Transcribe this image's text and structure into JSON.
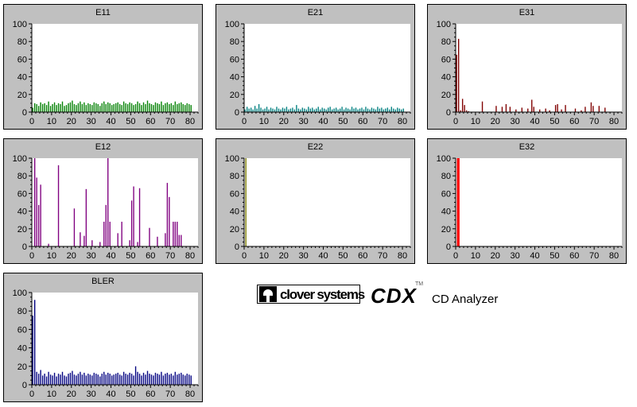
{
  "chart_data": [
    {
      "id": "e11",
      "type": "bar",
      "title": "E11",
      "color": "#008000",
      "xlim": [
        0,
        84
      ],
      "ylim": [
        0,
        100
      ],
      "xticks": [
        0,
        10,
        20,
        30,
        40,
        50,
        60,
        70,
        80
      ],
      "yticks": [
        0,
        20,
        40,
        60,
        80,
        100
      ],
      "x": [
        0,
        1,
        2,
        3,
        4,
        5,
        6,
        7,
        8,
        9,
        10,
        11,
        12,
        13,
        14,
        15,
        16,
        17,
        18,
        19,
        20,
        21,
        22,
        23,
        24,
        25,
        26,
        27,
        28,
        29,
        30,
        31,
        32,
        33,
        34,
        35,
        36,
        37,
        38,
        39,
        40,
        41,
        42,
        43,
        44,
        45,
        46,
        47,
        48,
        49,
        50,
        51,
        52,
        53,
        54,
        55,
        56,
        57,
        58,
        59,
        60,
        61,
        62,
        63,
        64,
        65,
        66,
        67,
        68,
        69,
        70,
        71,
        72,
        73,
        74,
        75,
        76,
        77,
        78,
        79,
        80
      ],
      "values": [
        5,
        10,
        9,
        7,
        11,
        9,
        10,
        8,
        12,
        7,
        9,
        11,
        8,
        10,
        9,
        12,
        7,
        8,
        10,
        11,
        13,
        9,
        8,
        10,
        12,
        9,
        11,
        8,
        10,
        9,
        8,
        11,
        10,
        9,
        7,
        10,
        12,
        9,
        11,
        10,
        8,
        9,
        10,
        11,
        9,
        8,
        12,
        10,
        9,
        11,
        10,
        8,
        9,
        12,
        10,
        8,
        11,
        9,
        13,
        10,
        9,
        8,
        11,
        10,
        9,
        12,
        8,
        10,
        11,
        9,
        10,
        8,
        12,
        9,
        10,
        11,
        9,
        8,
        10,
        9,
        8
      ]
    },
    {
      "id": "e21",
      "type": "bar",
      "title": "E21",
      "color": "#008080",
      "xlim": [
        0,
        84
      ],
      "ylim": [
        0,
        100
      ],
      "xticks": [
        0,
        10,
        20,
        30,
        40,
        50,
        60,
        70,
        80
      ],
      "yticks": [
        0,
        20,
        40,
        60,
        80,
        100
      ],
      "x": [
        0,
        1,
        2,
        3,
        4,
        5,
        6,
        7,
        8,
        9,
        10,
        11,
        12,
        13,
        14,
        15,
        16,
        17,
        18,
        19,
        20,
        21,
        22,
        23,
        24,
        25,
        26,
        27,
        28,
        29,
        30,
        31,
        32,
        33,
        34,
        35,
        36,
        37,
        38,
        39,
        40,
        41,
        42,
        43,
        44,
        45,
        46,
        47,
        48,
        49,
        50,
        51,
        52,
        53,
        54,
        55,
        56,
        57,
        58,
        59,
        60,
        61,
        62,
        63,
        64,
        65,
        66,
        67,
        68,
        69,
        70,
        71,
        72,
        73,
        74,
        75,
        76,
        77,
        78,
        79,
        80
      ],
      "values": [
        3,
        6,
        4,
        5,
        3,
        7,
        4,
        9,
        5,
        3,
        4,
        6,
        3,
        5,
        4,
        3,
        6,
        4,
        3,
        5,
        4,
        6,
        3,
        4,
        5,
        3,
        8,
        4,
        3,
        5,
        4,
        3,
        6,
        4,
        5,
        3,
        4,
        6,
        3,
        5,
        4,
        3,
        5,
        6,
        3,
        4,
        5,
        3,
        4,
        6,
        3,
        5,
        4,
        3,
        6,
        4,
        5,
        3,
        4,
        5,
        3,
        6,
        4,
        3,
        5,
        4,
        3,
        6,
        4,
        5,
        3,
        4,
        5,
        3,
        6,
        4,
        3,
        5,
        4,
        3,
        4
      ]
    },
    {
      "id": "e31",
      "type": "bar",
      "title": "E31",
      "color": "#800000",
      "xlim": [
        0,
        84
      ],
      "ylim": [
        0,
        100
      ],
      "xticks": [
        0,
        10,
        20,
        30,
        40,
        50,
        60,
        70,
        80
      ],
      "yticks": [
        0,
        20,
        40,
        60,
        80,
        100
      ],
      "x": [
        0,
        1,
        2,
        3,
        4,
        5,
        6,
        13,
        20,
        23,
        25,
        27,
        30,
        33,
        36,
        38,
        39,
        42,
        45,
        47,
        50,
        51,
        53,
        55,
        60,
        63,
        65,
        68,
        69,
        72,
        75
      ],
      "values": [
        65,
        83,
        2,
        15,
        8,
        2,
        1,
        12,
        7,
        6,
        9,
        6,
        3,
        5,
        4,
        14,
        6,
        3,
        4,
        2,
        8,
        9,
        3,
        8,
        4,
        2,
        6,
        11,
        7,
        7,
        5
      ]
    },
    {
      "id": "e12",
      "type": "bar",
      "title": "E12",
      "color": "#800080",
      "xlim": [
        0,
        84
      ],
      "ylim": [
        0,
        100
      ],
      "xticks": [
        0,
        10,
        20,
        30,
        40,
        50,
        60,
        70,
        80
      ],
      "yticks": [
        0,
        20,
        40,
        60,
        80,
        100
      ],
      "x": [
        1,
        2,
        3,
        4,
        8,
        13,
        21,
        24,
        26,
        27,
        30,
        34,
        36,
        37,
        38,
        39,
        43,
        45,
        49,
        50,
        51,
        53,
        54,
        59,
        63,
        67,
        68,
        69,
        71,
        72,
        73,
        74,
        75
      ],
      "values": [
        100,
        78,
        47,
        70,
        3,
        92,
        43,
        16,
        12,
        65,
        7,
        5,
        28,
        47,
        100,
        28,
        15,
        28,
        7,
        52,
        68,
        5,
        66,
        21,
        11,
        15,
        72,
        56,
        28,
        28,
        28,
        13,
        13
      ]
    },
    {
      "id": "e22",
      "type": "bar",
      "title": "E22",
      "color": "#808000",
      "xlim": [
        0,
        84
      ],
      "ylim": [
        0,
        100
      ],
      "xticks": [
        0,
        10,
        20,
        30,
        40,
        50,
        60,
        70,
        80
      ],
      "yticks": [
        0,
        20,
        40,
        60,
        80,
        100
      ],
      "x": [
        0.4
      ],
      "values": [
        100
      ]
    },
    {
      "id": "e32",
      "type": "bar",
      "title": "E32",
      "color": "#ff0000",
      "xlim": [
        0,
        84
      ],
      "ylim": [
        0,
        100
      ],
      "xticks": [
        0,
        10,
        20,
        30,
        40,
        50,
        60,
        70,
        80
      ],
      "yticks": [
        0,
        20,
        40,
        60,
        80,
        100
      ],
      "x": [
        0.4,
        0.8,
        1.2
      ],
      "values": [
        100,
        100,
        100
      ]
    },
    {
      "id": "bler",
      "type": "bar",
      "title": "BLER",
      "color": "#000080",
      "xlim": [
        0,
        84
      ],
      "ylim": [
        0,
        100
      ],
      "xticks": [
        0,
        10,
        20,
        30,
        40,
        50,
        60,
        70,
        80
      ],
      "yticks": [
        0,
        20,
        40,
        60,
        80,
        100
      ],
      "x": [
        0,
        1,
        2,
        3,
        4,
        5,
        6,
        7,
        8,
        9,
        10,
        11,
        12,
        13,
        14,
        15,
        16,
        17,
        18,
        19,
        20,
        21,
        22,
        23,
        24,
        25,
        26,
        27,
        28,
        29,
        30,
        31,
        32,
        33,
        34,
        35,
        36,
        37,
        38,
        39,
        40,
        41,
        42,
        43,
        44,
        45,
        46,
        47,
        48,
        49,
        50,
        51,
        52,
        53,
        54,
        55,
        56,
        57,
        58,
        59,
        60,
        61,
        62,
        63,
        64,
        65,
        66,
        67,
        68,
        69,
        70,
        71,
        72,
        73,
        74,
        75,
        76,
        77,
        78,
        79,
        80
      ],
      "values": [
        75,
        92,
        14,
        12,
        16,
        10,
        12,
        9,
        14,
        11,
        10,
        13,
        9,
        12,
        11,
        14,
        10,
        9,
        12,
        13,
        15,
        11,
        10,
        12,
        14,
        11,
        13,
        10,
        12,
        11,
        10,
        13,
        12,
        11,
        9,
        12,
        14,
        11,
        13,
        12,
        10,
        11,
        12,
        13,
        11,
        10,
        14,
        12,
        11,
        13,
        12,
        10,
        20,
        14,
        12,
        10,
        13,
        11,
        15,
        12,
        11,
        10,
        13,
        12,
        11,
        14,
        10,
        12,
        13,
        11,
        12,
        10,
        14,
        11,
        12,
        13,
        11,
        10,
        12,
        11,
        10
      ]
    }
  ],
  "brand": {
    "company": "clover systems",
    "product": "CDX",
    "trademark": "TM",
    "description": "CD Analyzer"
  }
}
